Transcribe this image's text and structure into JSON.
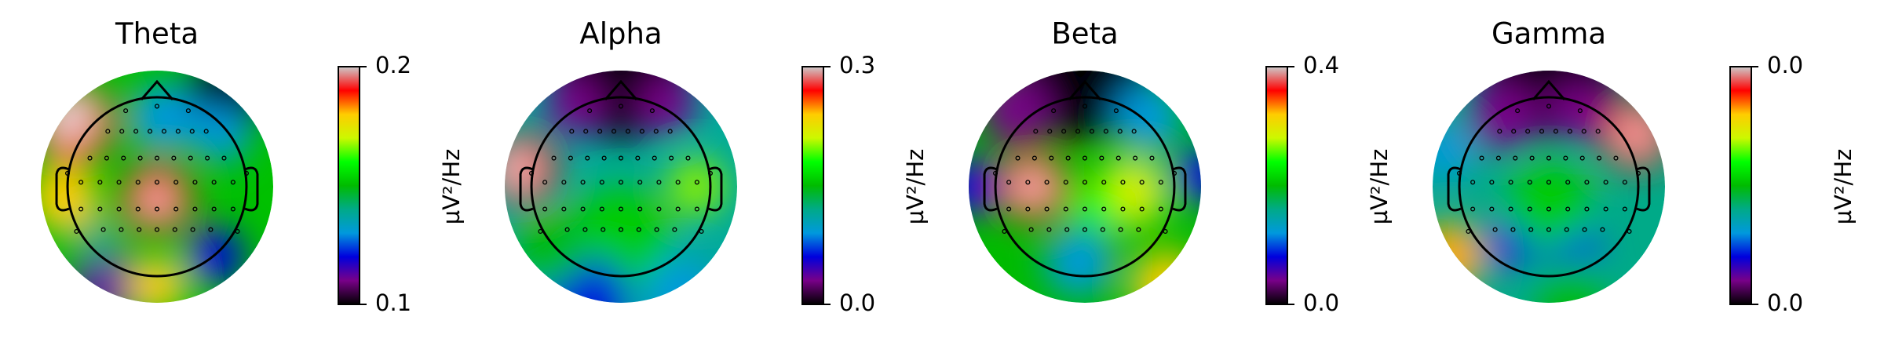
{
  "chart_data": [
    {
      "type": "topomap",
      "title": "Theta",
      "colorbar_label": "µV²/Hz",
      "ylim": [
        0.1,
        0.2
      ],
      "yticks": [
        0.1,
        0.2
      ]
    },
    {
      "type": "topomap",
      "title": "Alpha",
      "colorbar_label": "µV²/Hz",
      "ylim": [
        0,
        0.3
      ],
      "yticks": [
        {
          "value": 0,
          "label": "0.0"
        },
        0.3
      ]
    },
    {
      "type": "topomap",
      "title": "Beta",
      "colorbar_label": "µV²/Hz",
      "ylim": [
        0,
        0.4
      ],
      "yticks": [
        {
          "value": 0,
          "label": "0.0"
        },
        0.4
      ]
    },
    {
      "type": "topomap",
      "title": "Gamma",
      "colorbar_label": "µV²/Hz",
      "ylim": [
        0,
        0.04
      ],
      "yticks": [
        {
          "value": 0,
          "label": "0.0"
        },
        {
          "value": 0.04,
          "label": "0.0"
        }
      ]
    }
  ]
}
